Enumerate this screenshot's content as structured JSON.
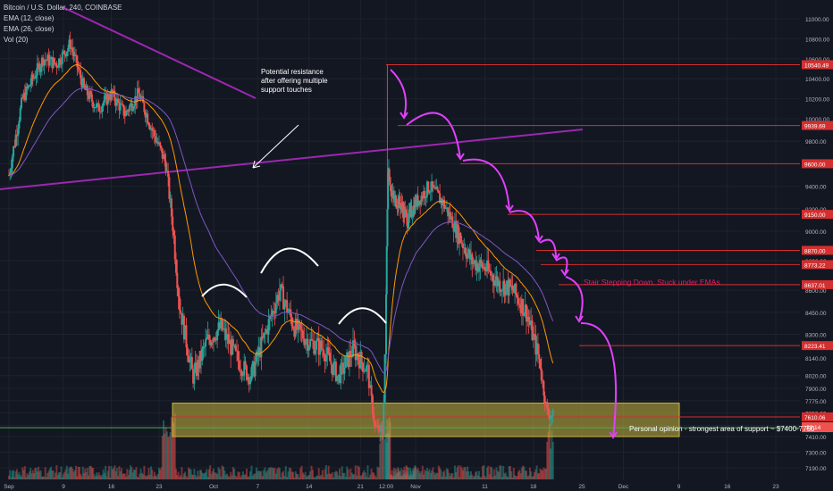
{
  "legend": {
    "symbol": "Bitcoin / U.S. Dollar, 240, COINBASE",
    "ema_fast": "EMA (12, close)",
    "ema_slow": "EMA (26, close)",
    "volume": "Vol (20)"
  },
  "annotations": {
    "resistance": "Potential resistance after offering multiple support touches",
    "stair": "Stair Stepping Down. Stuck under EMAs",
    "support": "Personal opinion - strongest area of support ~ $7400-7750"
  },
  "colors": {
    "background": "#131722",
    "up": "#26a69a",
    "down": "#ef5350",
    "ema_fast": "#ff9800",
    "ema_slow": "#7e57c2",
    "trendline": "#9c27b0",
    "arrow": "#e040fb",
    "support_zone": "#c8b43c",
    "level_line": "#d32f2f"
  },
  "chart_data": {
    "type": "candlestick",
    "title": "Bitcoin / U.S. Dollar, 240, COINBASE",
    "ylim": [
      7150,
      11150
    ],
    "y_ticks": [
      11000,
      10800,
      10600,
      10400,
      10200,
      10000,
      9800,
      9600,
      9400,
      9200,
      9000,
      8800,
      8600,
      8450,
      8300,
      8140,
      8020,
      7900,
      7775,
      7650,
      7525,
      7410,
      7300,
      7190
    ],
    "x_ticks": [
      "Sep",
      "9",
      "16",
      "23",
      "Oct",
      "7",
      "14",
      "21",
      "12:00",
      "Nov",
      "11",
      "18",
      "25",
      "Dec",
      "9",
      "16",
      "23"
    ],
    "x_tick_days": [
      0,
      8,
      15,
      22,
      30,
      36,
      43,
      50,
      53.5,
      61,
      71,
      78,
      85,
      91,
      99,
      106,
      113
    ],
    "price_levels": [
      10540.49,
      9939.69,
      9600.0,
      9150.0,
      8870.0,
      8773.22,
      8637.01,
      8223.41,
      7610.06,
      7500.0
    ],
    "current_price": 7610.06,
    "countdown": "29:14",
    "support_zone": [
      7410,
      7750
    ],
    "price_path": [
      {
        "day": 0,
        "price": 9500
      },
      {
        "day": 2,
        "price": 10200
      },
      {
        "day": 5,
        "price": 10600
      },
      {
        "day": 7,
        "price": 10550
      },
      {
        "day": 9,
        "price": 10750
      },
      {
        "day": 11,
        "price": 10300
      },
      {
        "day": 13,
        "price": 10100
      },
      {
        "day": 15,
        "price": 10250
      },
      {
        "day": 17,
        "price": 10050
      },
      {
        "day": 19,
        "price": 10250
      },
      {
        "day": 21,
        "price": 9900
      },
      {
        "day": 23,
        "price": 9600
      },
      {
        "day": 25,
        "price": 8500
      },
      {
        "day": 27,
        "price": 8000
      },
      {
        "day": 29,
        "price": 8250
      },
      {
        "day": 31,
        "price": 8350
      },
      {
        "day": 33,
        "price": 8150
      },
      {
        "day": 35,
        "price": 8000
      },
      {
        "day": 37,
        "price": 8300
      },
      {
        "day": 39,
        "price": 8600
      },
      {
        "day": 41,
        "price": 8350
      },
      {
        "day": 43,
        "price": 8250
      },
      {
        "day": 45,
        "price": 8200
      },
      {
        "day": 47,
        "price": 8000
      },
      {
        "day": 49,
        "price": 8200
      },
      {
        "day": 51,
        "price": 8050
      },
      {
        "day": 52,
        "price": 7500
      },
      {
        "day": 53,
        "price": 7450
      },
      {
        "day": 54,
        "price": 9600
      },
      {
        "day": 55,
        "price": 9300
      },
      {
        "day": 57,
        "price": 9250
      },
      {
        "day": 59,
        "price": 9100
      },
      {
        "day": 61,
        "price": 9250
      },
      {
        "day": 63,
        "price": 9400
      },
      {
        "day": 65,
        "price": 9250
      },
      {
        "day": 67,
        "price": 9000
      },
      {
        "day": 69,
        "price": 8800
      },
      {
        "day": 71,
        "price": 8750
      },
      {
        "day": 73,
        "price": 8650
      },
      {
        "day": 75,
        "price": 8600
      },
      {
        "day": 77,
        "price": 8450
      },
      {
        "day": 79,
        "price": 8100
      },
      {
        "day": 80,
        "price": 7650
      },
      {
        "day": 81,
        "price": 7610
      }
    ]
  }
}
